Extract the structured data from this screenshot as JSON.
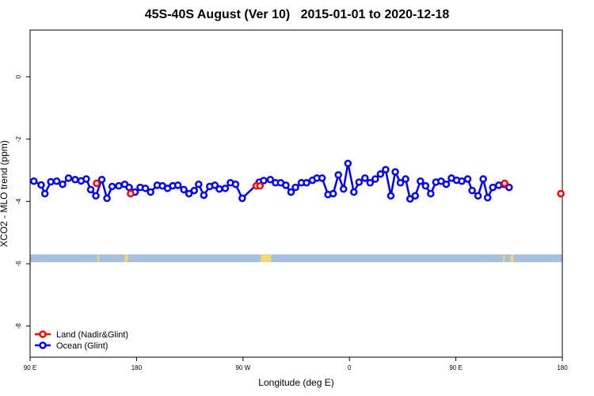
{
  "title": "45S-40S August (Ver 10)   2015-01-01 to 2020-12-18",
  "chart_data": {
    "type": "line",
    "title": "45S-40S August (Ver 10)   2015-01-01 to 2020-12-18",
    "xlabel": "Longitude (deg E)",
    "ylabel": "XCO2 - MLO trend (ppm)",
    "xlim": [
      90,
      450
    ],
    "ylim": [
      -9,
      1.5
    ],
    "x_ticks": [
      {
        "value": 90,
        "label": "90 E"
      },
      {
        "value": 162,
        "label": "180"
      },
      {
        "value": 234,
        "label": "90 W"
      },
      {
        "value": 306,
        "label": "0"
      },
      {
        "value": 378,
        "label": "90 E"
      },
      {
        "value": 450,
        "label": "180"
      }
    ],
    "y_ticks": [
      0,
      -2,
      -4,
      -6,
      -8
    ],
    "grid": false,
    "legend_position": "bottom-left",
    "series": [
      {
        "name": "Ocean (Glint)",
        "color": "#0000ff",
        "marker": "open-circle",
        "points": [
          [
            92.5,
            -3.35
          ],
          [
            97.5,
            -3.47
          ],
          [
            100,
            -3.75
          ],
          [
            104,
            -3.37
          ],
          [
            108,
            -3.35
          ],
          [
            112,
            -3.45
          ],
          [
            116,
            -3.25
          ],
          [
            120.5,
            -3.3
          ],
          [
            124.5,
            -3.34
          ],
          [
            128,
            -3.28
          ],
          [
            131,
            -3.62
          ],
          [
            134.5,
            -3.82
          ],
          [
            138.5,
            -3.3
          ],
          [
            142,
            -3.9
          ],
          [
            145.5,
            -3.52
          ],
          [
            150,
            -3.5
          ],
          [
            154,
            -3.45
          ],
          [
            157,
            -3.55
          ],
          [
            161,
            -3.7
          ],
          [
            164.5,
            -3.55
          ],
          [
            168,
            -3.58
          ],
          [
            171.5,
            -3.7
          ],
          [
            176,
            -3.48
          ],
          [
            179.5,
            -3.5
          ],
          [
            183,
            -3.58
          ],
          [
            186.5,
            -3.5
          ],
          [
            190,
            -3.48
          ],
          [
            194,
            -3.62
          ],
          [
            197.5,
            -3.75
          ],
          [
            201,
            -3.65
          ],
          [
            204,
            -3.45
          ],
          [
            207.5,
            -3.8
          ],
          [
            211.5,
            -3.52
          ],
          [
            215,
            -3.48
          ],
          [
            218,
            -3.6
          ],
          [
            222,
            -3.58
          ],
          [
            225.5,
            -3.4
          ],
          [
            229,
            -3.45
          ],
          [
            233.5,
            -3.9
          ],
          [
            245,
            -3.38
          ],
          [
            248,
            -3.33
          ],
          [
            252.5,
            -3.3
          ],
          [
            256,
            -3.4
          ],
          [
            259.5,
            -3.4
          ],
          [
            263,
            -3.48
          ],
          [
            266.5,
            -3.7
          ],
          [
            269.5,
            -3.55
          ],
          [
            273.5,
            -3.4
          ],
          [
            277,
            -3.4
          ],
          [
            281,
            -3.32
          ],
          [
            284,
            -3.25
          ],
          [
            287.5,
            -3.25
          ],
          [
            291.5,
            -3.78
          ],
          [
            295,
            -3.75
          ],
          [
            298.5,
            -3.15
          ],
          [
            302,
            -3.6
          ],
          [
            305,
            -2.78
          ],
          [
            309,
            -3.7
          ],
          [
            312.5,
            -3.38
          ],
          [
            316.5,
            -3.25
          ],
          [
            320,
            -3.4
          ],
          [
            323.5,
            -3.28
          ],
          [
            327,
            -3.12
          ],
          [
            330.5,
            -2.98
          ],
          [
            334,
            -3.82
          ],
          [
            337,
            -3.05
          ],
          [
            340.5,
            -3.4
          ],
          [
            344,
            -3.28
          ],
          [
            347,
            -3.92
          ],
          [
            350.5,
            -3.82
          ],
          [
            354,
            -3.35
          ],
          [
            357.5,
            -3.5
          ],
          [
            361,
            -3.75
          ],
          [
            364.5,
            -3.38
          ],
          [
            368,
            -3.35
          ],
          [
            371.5,
            -3.45
          ],
          [
            375,
            -3.25
          ],
          [
            378.5,
            -3.32
          ],
          [
            382,
            -3.35
          ],
          [
            386,
            -3.28
          ],
          [
            389,
            -3.65
          ],
          [
            393,
            -3.82
          ],
          [
            396.5,
            -3.28
          ],
          [
            399.5,
            -3.88
          ],
          [
            403,
            -3.55
          ],
          [
            407,
            -3.48
          ],
          [
            410.5,
            -3.45
          ],
          [
            414,
            -3.55
          ]
        ]
      },
      {
        "name": "Land (Nadir&Glint)",
        "color": "#ff0000",
        "marker": "open-circle",
        "points": [
          [
            135,
            -3.42
          ],
          [
            158,
            -3.75
          ],
          [
            243,
            -3.5
          ],
          [
            245.5,
            -3.5
          ],
          [
            411,
            -3.42
          ],
          [
            449,
            -3.75
          ]
        ]
      }
    ],
    "band": {
      "y_range": [
        -5.95,
        -5.7
      ],
      "ocean_color": "#a9bfdf",
      "land_color": "#f5d76e",
      "land_x": [
        [
          135.5,
          136.5
        ],
        [
          154,
          156
        ],
        [
          246,
          253
        ],
        [
          410,
          411
        ],
        [
          415,
          417
        ]
      ]
    }
  }
}
